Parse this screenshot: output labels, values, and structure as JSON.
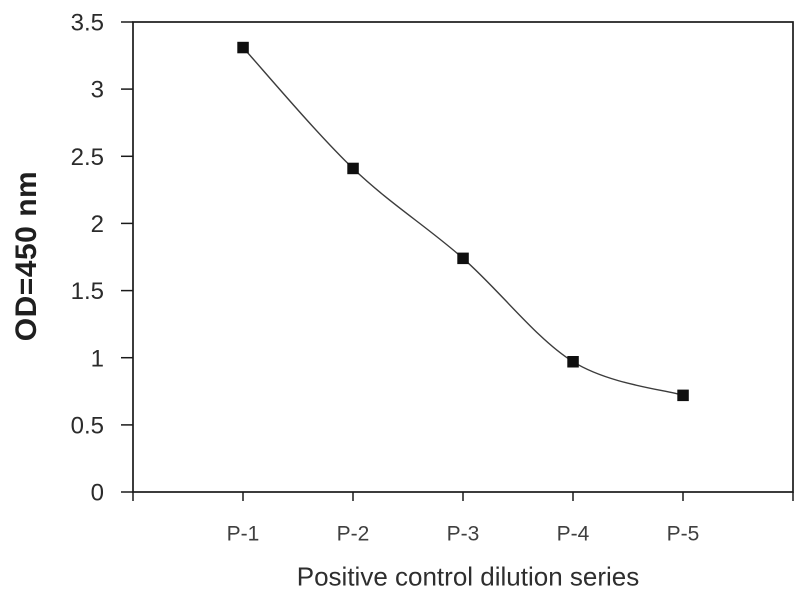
{
  "figure": {
    "background": "#ffffff"
  },
  "chart_data": {
    "type": "line",
    "title": "",
    "categories": [
      "P-1",
      "P-2",
      "P-3",
      "P-4",
      "P-5"
    ],
    "values": [
      3.31,
      2.41,
      1.74,
      0.97,
      0.72
    ],
    "xlabel": "Positive control dilution series",
    "ylabel": "OD=450 nm",
    "ylim": [
      0,
      3.5
    ],
    "ytick_step": 0.5,
    "ytick_labels": [
      "0",
      "0.5",
      "1",
      "1.5",
      "2",
      "2.5",
      "3",
      "3.5"
    ],
    "grid": false,
    "legend": "none",
    "smoothed_line": true,
    "marker": "square",
    "colors": {
      "line": "#3c3c3c",
      "marker": "#0f0f0f",
      "axis": "#1a1a1a",
      "ytick_text": "#2b2b2b",
      "xtick_text": "#3f3f3f"
    }
  }
}
